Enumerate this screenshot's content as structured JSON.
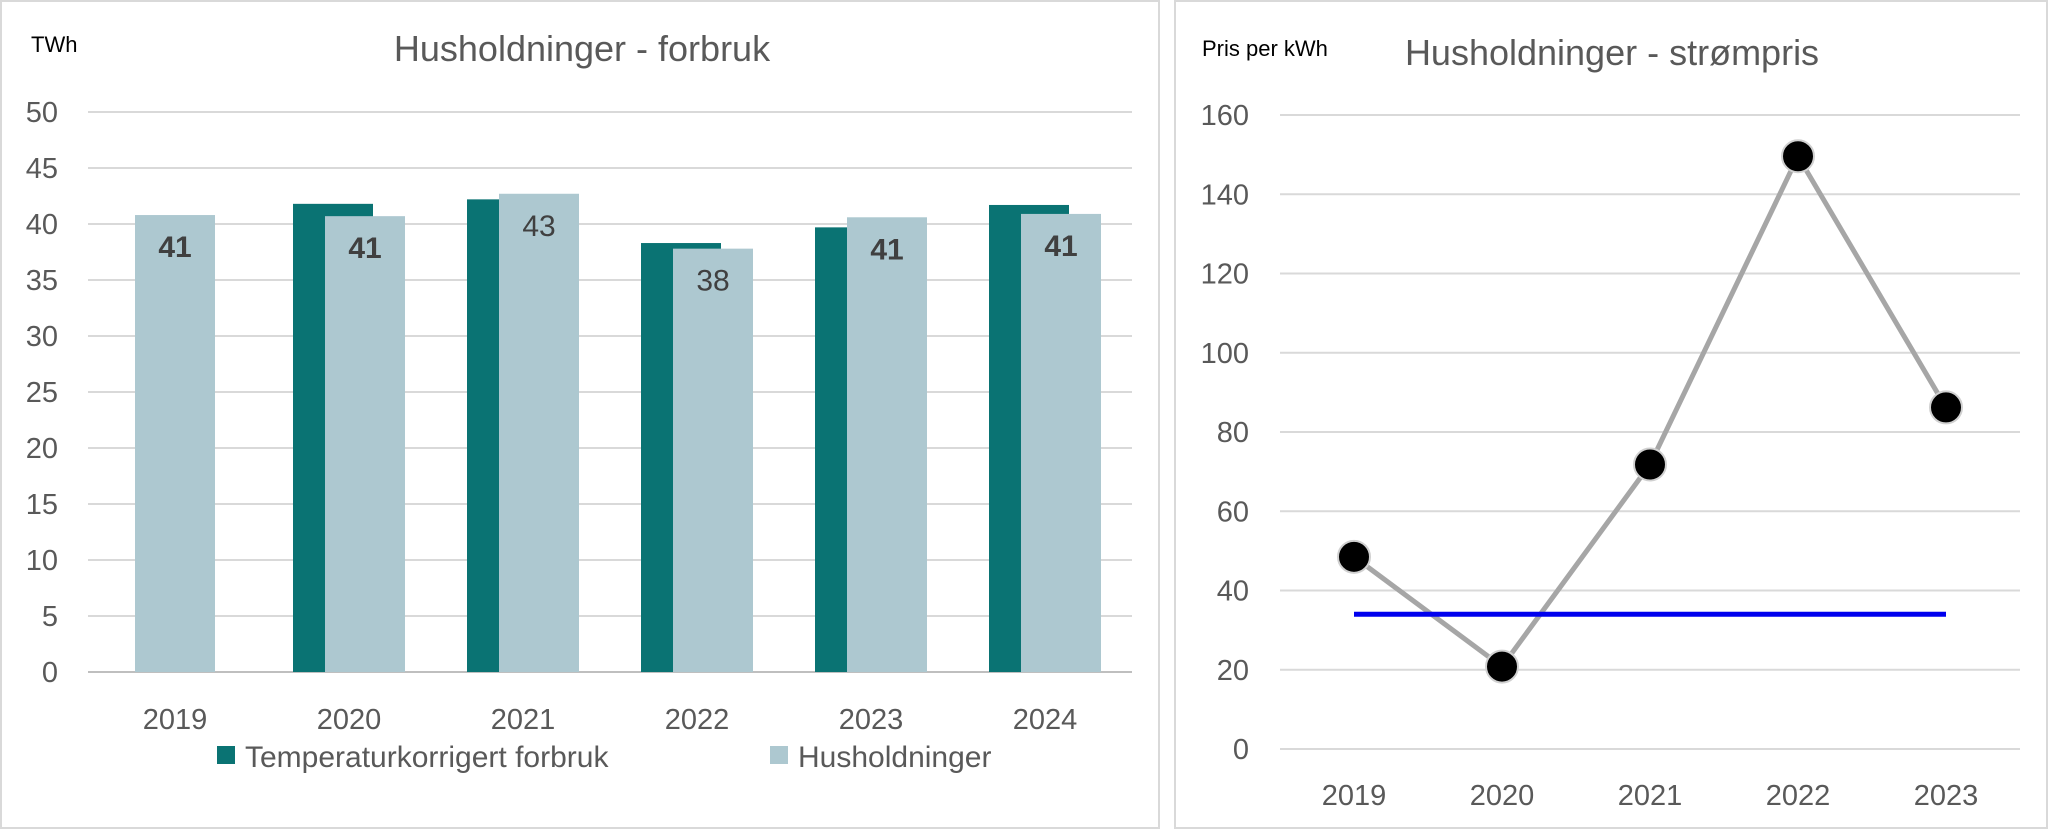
{
  "chart_data": [
    {
      "type": "bar",
      "title": "Husholdninger - forbruk",
      "ylabel": "TWh",
      "ylim": [
        0,
        50
      ],
      "yticks": [
        0,
        5,
        10,
        15,
        20,
        25,
        30,
        35,
        40,
        45,
        50
      ],
      "grid": true,
      "legend_position": "bottom",
      "categories": [
        "2019",
        "2020",
        "2021",
        "2022",
        "2023",
        "2024"
      ],
      "series": [
        {
          "name": "Temperaturkorrigert forbruk",
          "color": "#0a7373",
          "values": [
            null,
            41.8,
            42.2,
            38.3,
            39.7,
            41.7
          ]
        },
        {
          "name": "Husholdninger",
          "color": "#adc8d0",
          "values": [
            40.8,
            40.7,
            42.7,
            37.8,
            40.6,
            40.9
          ],
          "labels": [
            "41",
            "41",
            "43",
            "38",
            "41",
            "41"
          ],
          "labels_bold": [
            true,
            true,
            false,
            false,
            true,
            true
          ]
        }
      ]
    },
    {
      "type": "line",
      "title": "Husholdninger - strømpris",
      "ylabel": "Pris per kWh",
      "ylim": [
        0,
        160
      ],
      "yticks": [
        0,
        20,
        40,
        60,
        80,
        100,
        120,
        140,
        160
      ],
      "grid": true,
      "categories": [
        "2019",
        "2020",
        "2021",
        "2022",
        "2023"
      ],
      "series": [
        {
          "color": "#a6a6a6",
          "marker_color": "#000000",
          "values": [
            48.5,
            20.8,
            71.8,
            149.6,
            86.2
          ]
        },
        {
          "color": "#0000ee",
          "values": [
            34,
            34,
            34,
            34,
            34
          ]
        }
      ]
    }
  ]
}
